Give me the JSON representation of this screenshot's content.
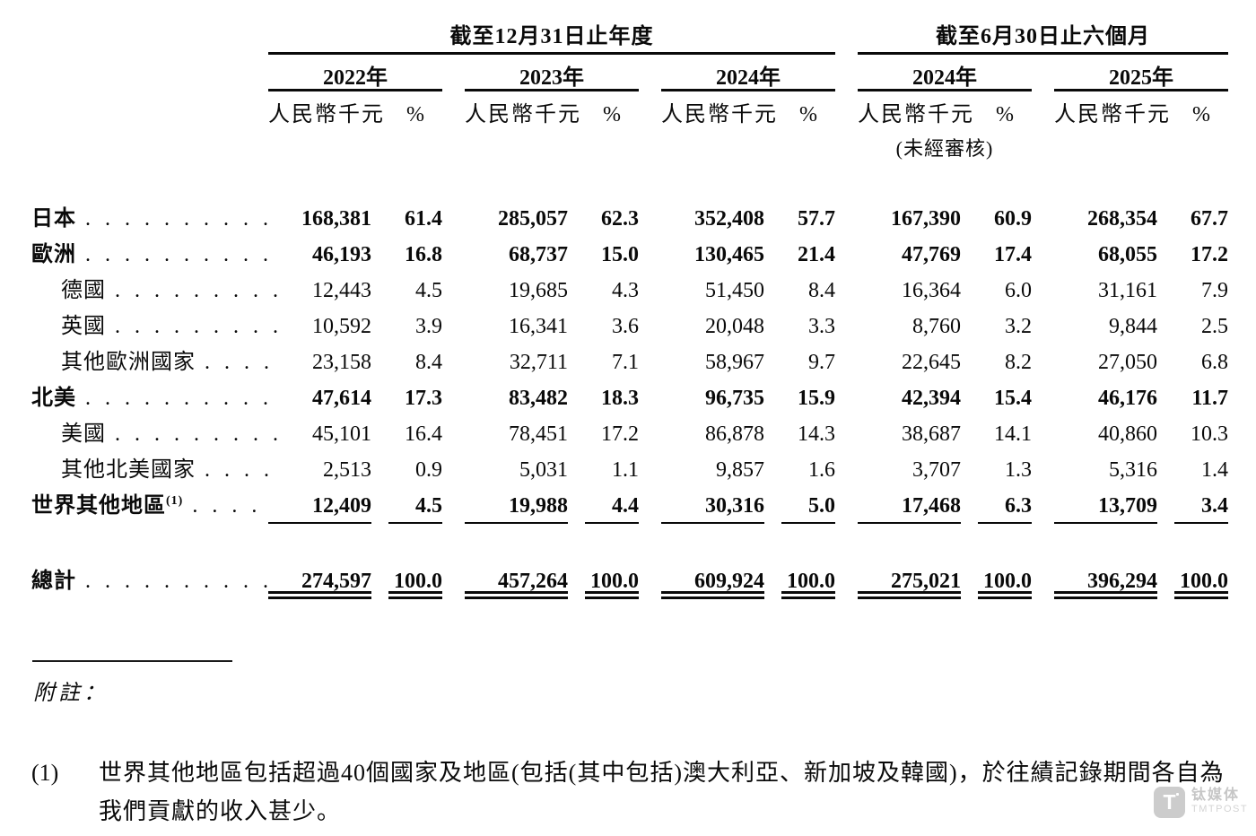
{
  "table": {
    "span_headers": [
      "截至12月31日止年度",
      "截至6月30日止六個月"
    ],
    "year_headers": [
      "2022年",
      "2023年",
      "2024年",
      "2024年",
      "2025年"
    ],
    "unit_label": "人民幣千元",
    "pct_label": "%",
    "unaudited_label": "(未經審核)",
    "rows": [
      {
        "label": "日本",
        "indent": false,
        "bold": true,
        "sup": "",
        "dots": ". . . . . . . . . .",
        "rule": "none",
        "gap_before": false,
        "values": [
          "168,381",
          "61.4",
          "285,057",
          "62.3",
          "352,408",
          "57.7",
          "167,390",
          "60.9",
          "268,354",
          "67.7"
        ]
      },
      {
        "label": "歐洲",
        "indent": false,
        "bold": true,
        "sup": "",
        "dots": ". . . . . . . . . .",
        "rule": "none",
        "gap_before": false,
        "values": [
          "46,193",
          "16.8",
          "68,737",
          "15.0",
          "130,465",
          "21.4",
          "47,769",
          "17.4",
          "68,055",
          "17.2"
        ]
      },
      {
        "label": "德國",
        "indent": true,
        "bold": false,
        "sup": "",
        "dots": ". . . . . . . . .",
        "rule": "none",
        "gap_before": false,
        "values": [
          "12,443",
          "4.5",
          "19,685",
          "4.3",
          "51,450",
          "8.4",
          "16,364",
          "6.0",
          "31,161",
          "7.9"
        ]
      },
      {
        "label": "英國",
        "indent": true,
        "bold": false,
        "sup": "",
        "dots": ". . . . . . . . .",
        "rule": "none",
        "gap_before": false,
        "values": [
          "10,592",
          "3.9",
          "16,341",
          "3.6",
          "20,048",
          "3.3",
          "8,760",
          "3.2",
          "9,844",
          "2.5"
        ]
      },
      {
        "label": "其他歐洲國家",
        "indent": true,
        "bold": false,
        "sup": "",
        "dots": ". . . .",
        "rule": "none",
        "gap_before": false,
        "values": [
          "23,158",
          "8.4",
          "32,711",
          "7.1",
          "58,967",
          "9.7",
          "22,645",
          "8.2",
          "27,050",
          "6.8"
        ]
      },
      {
        "label": "北美",
        "indent": false,
        "bold": true,
        "sup": "",
        "dots": ". . . . . . . . . .",
        "rule": "none",
        "gap_before": false,
        "values": [
          "47,614",
          "17.3",
          "83,482",
          "18.3",
          "96,735",
          "15.9",
          "42,394",
          "15.4",
          "46,176",
          "11.7"
        ]
      },
      {
        "label": "美國",
        "indent": true,
        "bold": false,
        "sup": "",
        "dots": ". . . . . . . . .",
        "rule": "none",
        "gap_before": false,
        "values": [
          "45,101",
          "16.4",
          "78,451",
          "17.2",
          "86,878",
          "14.3",
          "38,687",
          "14.1",
          "40,860",
          "10.3"
        ]
      },
      {
        "label": "其他北美國家",
        "indent": true,
        "bold": false,
        "sup": "",
        "dots": ". . . .",
        "rule": "none",
        "gap_before": false,
        "values": [
          "2,513",
          "0.9",
          "5,031",
          "1.1",
          "9,857",
          "1.6",
          "3,707",
          "1.3",
          "5,316",
          "1.4"
        ]
      },
      {
        "label": "世界其他地區",
        "indent": false,
        "bold": true,
        "sup": "(1)",
        "dots": ". . . .",
        "rule": "single",
        "gap_before": false,
        "values": [
          "12,409",
          "4.5",
          "19,988",
          "4.4",
          "30,316",
          "5.0",
          "17,468",
          "6.3",
          "13,709",
          "3.4"
        ]
      },
      {
        "label": "總計",
        "indent": false,
        "bold": true,
        "sup": "",
        "dots": ". . . . . . . . . .",
        "rule": "double",
        "gap_before": true,
        "values": [
          "274,597",
          "100.0",
          "457,264",
          "100.0",
          "609,924",
          "100.0",
          "275,021",
          "100.0",
          "396,294",
          "100.0"
        ]
      }
    ]
  },
  "footnotes": {
    "heading": "附註：",
    "items": [
      {
        "marker": "(1)",
        "text": "世界其他地區包括超過40個國家及地區(包括(其中包括)澳大利亞、新加坡及韓國)，於往績記錄期間各自為我們貢獻的收入甚少。"
      }
    ]
  },
  "watermark": {
    "logo_letter": "T",
    "name": "钛媒体",
    "name_en": "TMTPOST"
  }
}
